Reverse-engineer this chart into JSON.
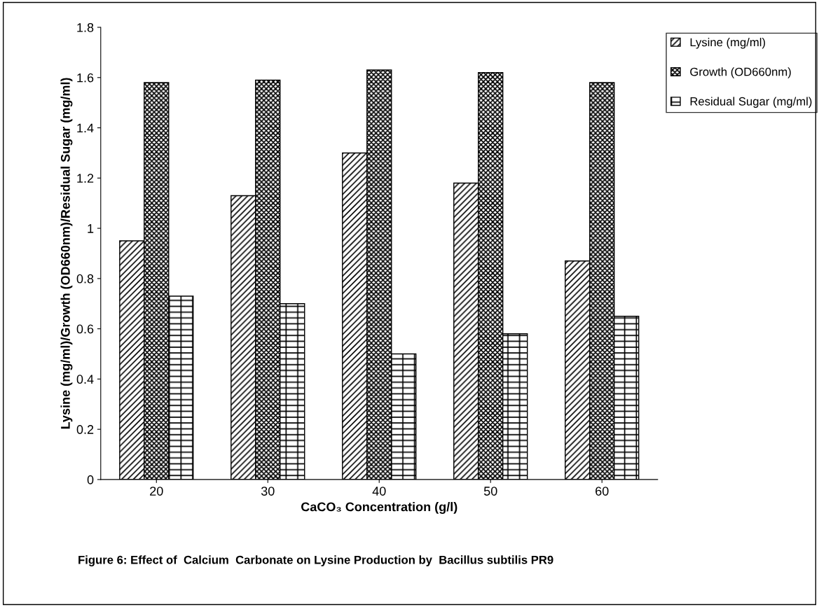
{
  "chart_data": {
    "type": "bar",
    "categories": [
      "20",
      "30",
      "40",
      "50",
      "60"
    ],
    "series": [
      {
        "name": "Lysine (mg/ml)",
        "color": "#000000",
        "values": [
          0.95,
          1.13,
          1.3,
          1.18,
          0.87
        ]
      },
      {
        "name": "Growth (OD660nm)",
        "color": "#000000",
        "values": [
          1.58,
          1.59,
          1.63,
          1.62,
          1.58
        ]
      },
      {
        "name": "Residual Sugar (mg/ml)",
        "color": "#000000",
        "values": [
          0.73,
          0.7,
          0.5,
          0.58,
          0.65
        ]
      }
    ],
    "xlabel": "CaCO₃ Concentration (g/l)",
    "ylabel": "Lysine (mg/ml)/Growth (OD660nm)/Residual Sugar (mg/ml)",
    "ylim": [
      0,
      1.8
    ],
    "yticks": [
      0,
      0.2,
      0.4,
      0.6,
      0.8,
      1,
      1.2,
      1.4,
      1.6,
      1.8
    ],
    "grid": false,
    "legend": "top right",
    "annotations": [
      "Figure 6: Effect of  Calcium  Carbonate on Lysine Production by  Bacillus subtilis PR9"
    ]
  }
}
